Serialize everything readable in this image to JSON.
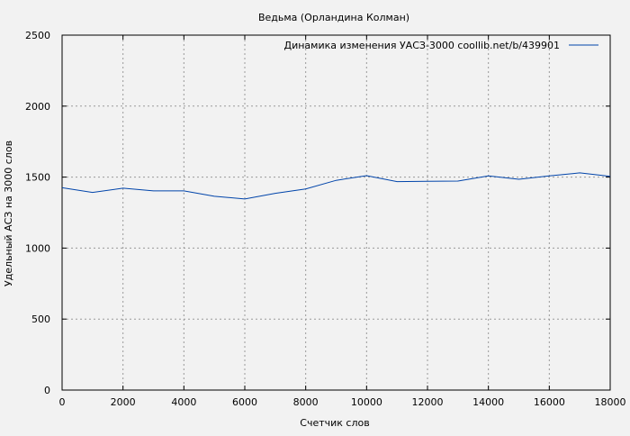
{
  "chart_data": {
    "type": "line",
    "title": "Ведьма (Орландина Колман)",
    "xlabel": "Счетчик слов",
    "ylabel": "Удельный АСЗ на 3000 слов",
    "xlim": [
      0,
      18000
    ],
    "ylim": [
      0,
      2500
    ],
    "xticks": [
      0,
      2000,
      4000,
      6000,
      8000,
      10000,
      12000,
      14000,
      16000,
      18000
    ],
    "yticks": [
      0,
      500,
      1000,
      1500,
      2000,
      2500
    ],
    "grid": true,
    "legend_position": "top-right",
    "series": [
      {
        "name": "Динамика изменения УАСЗ-3000  coollib.net/b/439901",
        "color": "#0044aa",
        "x": [
          0,
          1000,
          2000,
          3000,
          4000,
          5000,
          6000,
          7000,
          8000,
          9000,
          10000,
          11000,
          12000,
          13000,
          14000,
          15000,
          16000,
          17000,
          18000
        ],
        "y": [
          1425,
          1392,
          1422,
          1403,
          1403,
          1365,
          1346,
          1386,
          1417,
          1477,
          1510,
          1468,
          1470,
          1472,
          1508,
          1485,
          1508,
          1530,
          1505
        ]
      }
    ]
  }
}
